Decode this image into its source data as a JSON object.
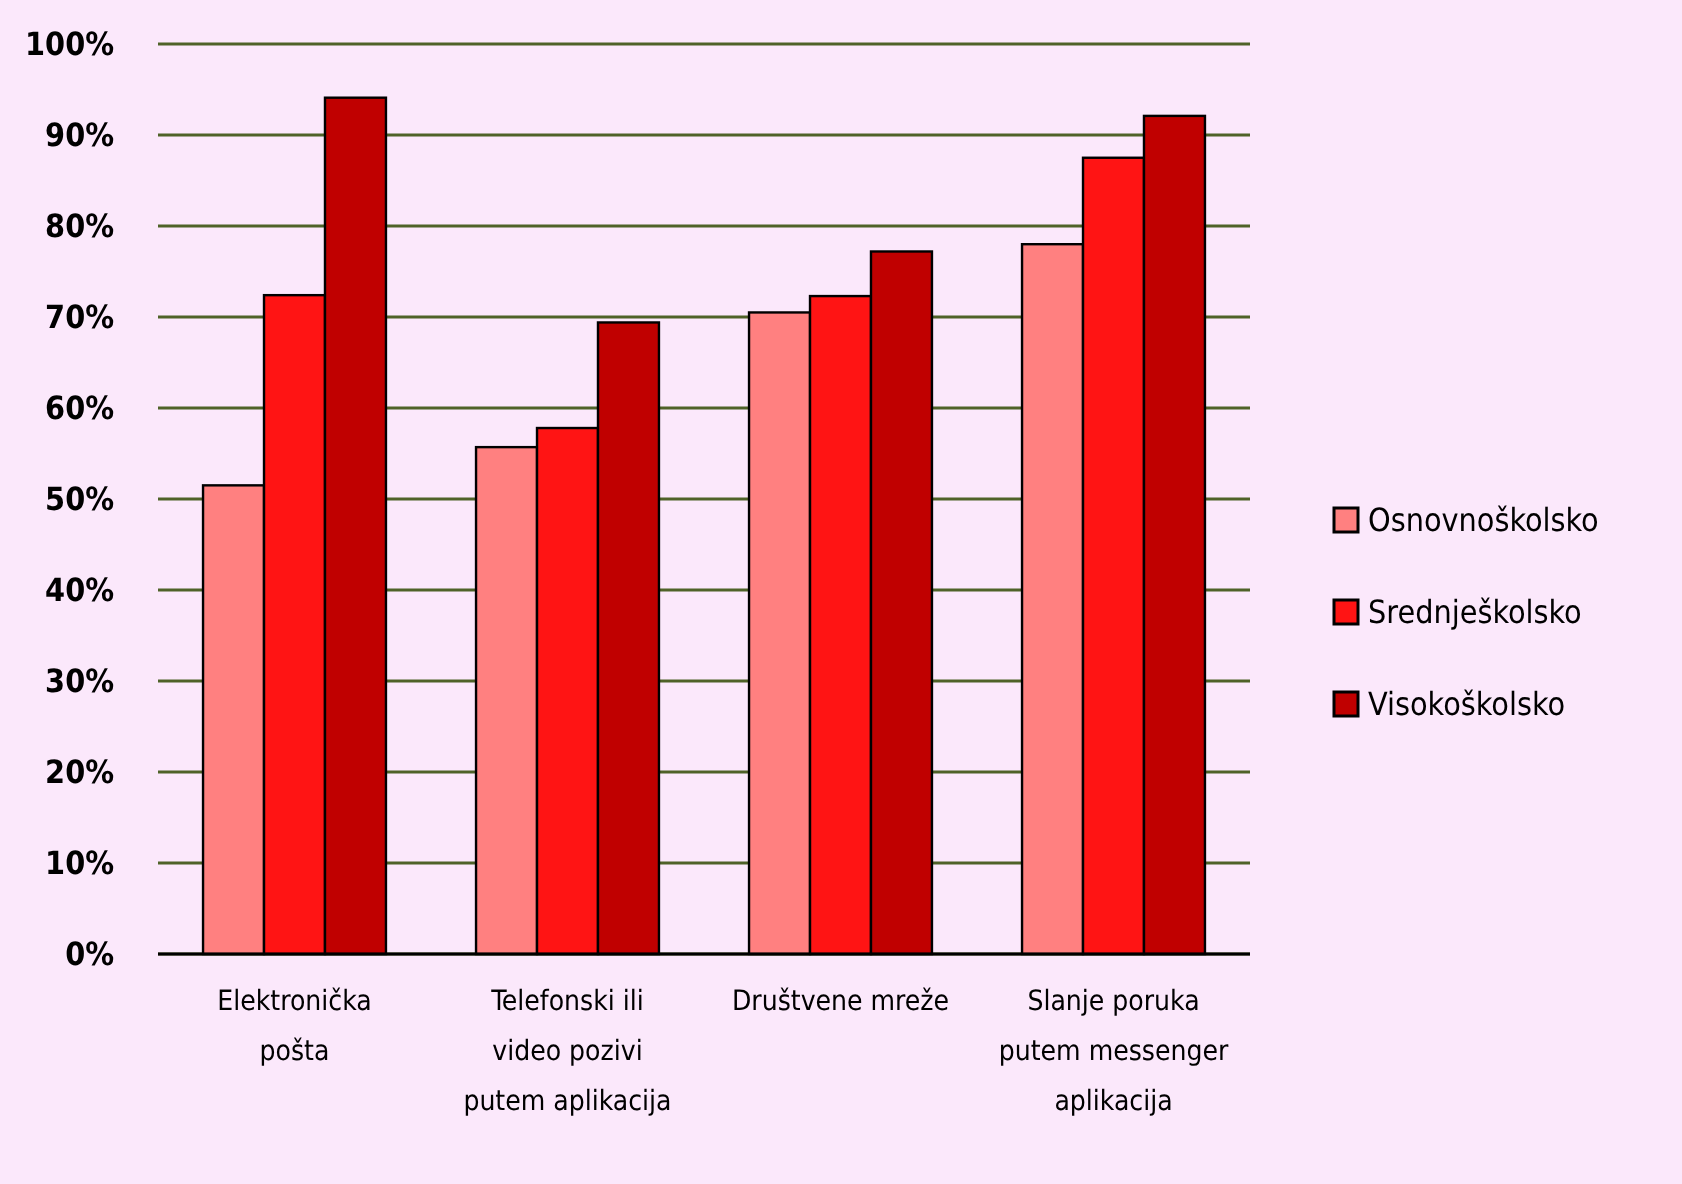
{
  "chart_data": {
    "type": "bar",
    "categories": [
      "Elektronička pošta",
      "Telefonski ili video pozivi putem aplikacija",
      "Društvene mreže",
      "Slanje poruka putem messenger aplikacija"
    ],
    "series": [
      {
        "name": "Osnovnoškolsko",
        "color": "#ff8080",
        "values": [
          51.5,
          55.7,
          70.5,
          78.0
        ]
      },
      {
        "name": "Srednješkolsko",
        "color": "#ff1414",
        "values": [
          72.4,
          57.8,
          72.3,
          87.5
        ]
      },
      {
        "name": "Visokoškolsko",
        "color": "#c00000",
        "values": [
          94.1,
          69.4,
          77.2,
          92.1
        ]
      }
    ],
    "ylim": [
      0,
      100
    ],
    "yticks": [
      {
        "value": 0,
        "label": "0%"
      },
      {
        "value": 10,
        "label": "10%"
      },
      {
        "value": 20,
        "label": "20%"
      },
      {
        "value": 30,
        "label": "30%"
      },
      {
        "value": 40,
        "label": "40%"
      },
      {
        "value": 50,
        "label": "50%"
      },
      {
        "value": 60,
        "label": "60%"
      },
      {
        "value": 70,
        "label": "70%"
      },
      {
        "value": 80,
        "label": "80%"
      },
      {
        "value": 90,
        "label": "90%"
      },
      {
        "value": 100,
        "label": "100%"
      }
    ],
    "grid": "y",
    "legend": "right"
  }
}
